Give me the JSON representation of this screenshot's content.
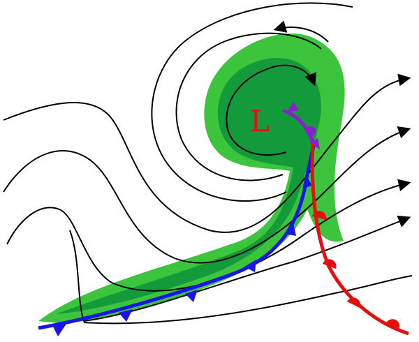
{
  "diagram": {
    "low_pressure_label": "L",
    "colors": {
      "cloud_light": "#3cc43c",
      "cloud_dark": "#139a3a",
      "cold_front": "#1a14e6",
      "warm_front": "#e60f0f",
      "occluded_front": "#8a1ed2",
      "streamline": "#000000",
      "label": "#e60f0f"
    },
    "icons": {
      "cold_front_symbol": "blue-triangle",
      "warm_front_symbol": "red-semicircle",
      "occluded_front_symbol": "purple-alternating"
    }
  }
}
